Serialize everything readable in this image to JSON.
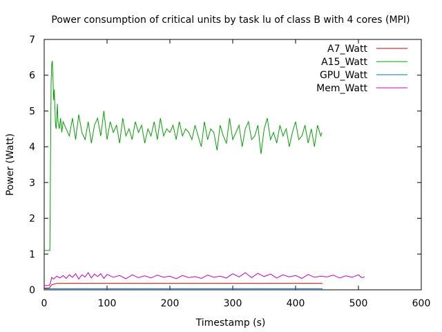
{
  "chart_data": {
    "type": "line",
    "title": "Power consumption of critical units by task lu of class B with 4 cores (MPI)",
    "xlabel": "Timestamp (s)",
    "ylabel": "Power (Watt)",
    "xlim": [
      0,
      600
    ],
    "ylim": [
      0,
      7
    ],
    "x_ticks": [
      "0",
      "100",
      "200",
      "300",
      "400",
      "500",
      "600"
    ],
    "y_ticks": [
      "0",
      "1",
      "2",
      "3",
      "4",
      "5",
      "6",
      "7"
    ],
    "grid": false,
    "legend_position": "top-right",
    "series": [
      {
        "name": "A7_Watt",
        "color": "#cc0000",
        "x": [
          0,
          8,
          12,
          20,
          100,
          200,
          300,
          400,
          443
        ],
        "values": [
          0.05,
          0.05,
          0.14,
          0.18,
          0.18,
          0.18,
          0.18,
          0.18,
          0.18
        ]
      },
      {
        "name": "A15_Watt",
        "color": "#00a000",
        "x": [
          0,
          5,
          9,
          10,
          11,
          12,
          13,
          14,
          15,
          16,
          17,
          18,
          19,
          20,
          21,
          22,
          24,
          26,
          28,
          30,
          35,
          40,
          45,
          50,
          55,
          60,
          65,
          70,
          75,
          80,
          85,
          90,
          95,
          100,
          105,
          110,
          115,
          120,
          125,
          130,
          135,
          140,
          145,
          150,
          155,
          160,
          165,
          170,
          175,
          180,
          185,
          190,
          195,
          200,
          205,
          210,
          215,
          220,
          225,
          230,
          235,
          240,
          245,
          250,
          255,
          260,
          265,
          270,
          275,
          280,
          285,
          290,
          295,
          300,
          305,
          310,
          315,
          320,
          325,
          330,
          335,
          340,
          345,
          350,
          355,
          360,
          365,
          370,
          375,
          380,
          385,
          390,
          395,
          400,
          405,
          410,
          415,
          420,
          425,
          430,
          435,
          440,
          442
        ],
        "values": [
          1.1,
          1.1,
          1.1,
          3.5,
          5.8,
          6.3,
          6.4,
          5.9,
          5.3,
          5.6,
          5.1,
          4.6,
          4.5,
          4.8,
          5.2,
          4.7,
          4.5,
          4.8,
          4.4,
          4.7,
          4.5,
          4.3,
          4.8,
          4.2,
          4.9,
          4.4,
          4.2,
          4.7,
          4.1,
          4.6,
          4.8,
          4.3,
          5.0,
          4.2,
          4.7,
          4.4,
          4.6,
          4.1,
          4.8,
          4.3,
          4.5,
          4.2,
          4.7,
          4.4,
          4.6,
          4.1,
          4.5,
          4.3,
          4.7,
          4.2,
          4.8,
          4.3,
          4.5,
          4.4,
          4.6,
          4.2,
          4.7,
          4.3,
          4.5,
          4.4,
          4.2,
          4.6,
          4.3,
          4.0,
          4.7,
          4.2,
          4.5,
          4.4,
          3.9,
          4.6,
          4.3,
          4.1,
          4.8,
          4.2,
          4.4,
          4.6,
          4.0,
          4.5,
          4.7,
          4.2,
          4.3,
          4.6,
          3.8,
          4.5,
          4.8,
          4.2,
          4.4,
          4.1,
          4.6,
          4.3,
          4.5,
          4.0,
          4.4,
          4.7,
          4.2,
          4.3,
          4.6,
          4.1,
          4.5,
          4.0,
          4.6,
          4.3,
          4.4
        ]
      },
      {
        "name": "GPU_Watt",
        "color": "#0070c0",
        "x": [
          0,
          8,
          12,
          100,
          200,
          300,
          400,
          443
        ],
        "values": [
          0.03,
          0.03,
          0.03,
          0.03,
          0.03,
          0.03,
          0.03,
          0.03
        ]
      },
      {
        "name": "Mem_Watt",
        "color": "#c000c0",
        "x": [
          0,
          8,
          10,
          12,
          15,
          20,
          25,
          30,
          35,
          40,
          45,
          50,
          55,
          60,
          65,
          70,
          75,
          80,
          85,
          90,
          95,
          100,
          110,
          120,
          130,
          140,
          150,
          160,
          170,
          180,
          190,
          200,
          210,
          220,
          230,
          240,
          250,
          260,
          270,
          280,
          290,
          300,
          310,
          320,
          330,
          340,
          350,
          360,
          370,
          380,
          390,
          400,
          410,
          420,
          430,
          440,
          450,
          460,
          470,
          480,
          490,
          500,
          505,
          510
        ],
        "values": [
          0.12,
          0.12,
          0.2,
          0.35,
          0.3,
          0.38,
          0.33,
          0.4,
          0.32,
          0.42,
          0.35,
          0.45,
          0.3,
          0.42,
          0.36,
          0.48,
          0.33,
          0.44,
          0.37,
          0.45,
          0.32,
          0.43,
          0.35,
          0.4,
          0.31,
          0.42,
          0.34,
          0.39,
          0.33,
          0.41,
          0.35,
          0.38,
          0.31,
          0.4,
          0.34,
          0.37,
          0.32,
          0.41,
          0.35,
          0.38,
          0.33,
          0.45,
          0.36,
          0.48,
          0.34,
          0.46,
          0.37,
          0.44,
          0.33,
          0.42,
          0.36,
          0.4,
          0.32,
          0.43,
          0.35,
          0.38,
          0.36,
          0.41,
          0.33,
          0.39,
          0.35,
          0.42,
          0.34,
          0.36
        ]
      }
    ]
  }
}
